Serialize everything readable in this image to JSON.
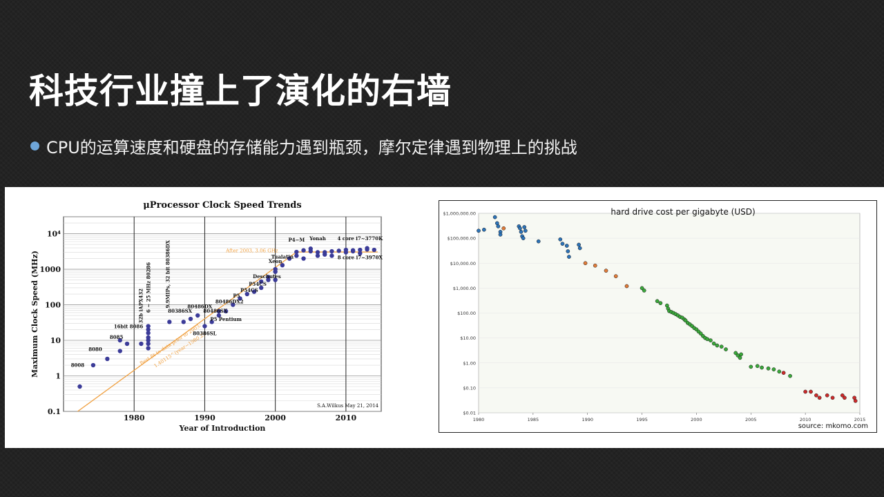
{
  "slide": {
    "title": "科技行业撞上了演化的右墙",
    "bullet": "CPU的运算速度和硬盘的存储能力遇到瓶颈，摩尔定律遇到物理上的挑战"
  },
  "colors": {
    "cpu_dot": "#3b3b98",
    "trend": "#f0a040",
    "hd_blue": "#2c73b8",
    "hd_orange": "#e07b39",
    "hd_green": "#3aa83a",
    "hd_red": "#cc2a2a"
  },
  "chart_data": [
    {
      "type": "scatter",
      "title": "μProcessor Clock Speed Trends",
      "xlabel": "Year of Introduction",
      "ylabel": "Maximum Clock Speed (MHz)",
      "xlim": [
        1970,
        2015
      ],
      "ylim": [
        0.1,
        30000
      ],
      "yscale": "log",
      "xticks": [
        "1980",
        "1990",
        "2000",
        "2010"
      ],
      "yticks": [
        "0.1",
        "1",
        "10",
        "100",
        "1000",
        "10⁴"
      ],
      "grid": true,
      "credit": "S.A.Wilkus May 21, 2014",
      "annotations": [
        {
          "text": "After 2003, 3.06 GHz",
          "x": 1993,
          "y": 3000
        },
        {
          "text": "Best fit to data prior to 2003:",
          "x": 1981,
          "y": 2
        },
        {
          "text": "1.40115^(year−1980.2)",
          "x": 1983,
          "y": 1.7
        }
      ],
      "trend": [
        {
          "x": 1972,
          "y": 0.1
        },
        {
          "x": 2003,
          "y": 3060
        },
        {
          "x": 2014.5,
          "y": 3060
        }
      ],
      "labels": [
        {
          "text": "8008",
          "x": 1972,
          "y": 1.8
        },
        {
          "text": "8080",
          "x": 1974.5,
          "y": 5
        },
        {
          "text": "8085",
          "x": 1977.5,
          "y": 11
        },
        {
          "text": "16bit 8086",
          "x": 1979.2,
          "y": 22
        },
        {
          "text": "32b iAPX432",
          "x": 1981.2,
          "y": 30
        },
        {
          "text": "6 ~ 25 MHz 80286",
          "x": 1982.3,
          "y": 60
        },
        {
          "text": "9.9MIPs, 32 bit 80386DX",
          "x": 1985,
          "y": 80
        },
        {
          "text": "80486DX",
          "x": 1989.3,
          "y": 80
        },
        {
          "text": "80386SX",
          "x": 1986.5,
          "y": 60
        },
        {
          "text": "80486SX",
          "x": 1991.5,
          "y": 60
        },
        {
          "text": "80486DX2",
          "x": 1993.5,
          "y": 110
        },
        {
          "text": "P5",
          "x": 1994.5,
          "y": 160
        },
        {
          "text": "P54CS",
          "x": 1996.3,
          "y": 230
        },
        {
          "text": "P54CS",
          "x": 1997.5,
          "y": 340
        },
        {
          "text": "P5 Pentium",
          "x": 1993,
          "y": 35
        },
        {
          "text": "80386SL",
          "x": 1990,
          "y": 14
        },
        {
          "text": "Deschutes",
          "x": 1998.8,
          "y": 560
        },
        {
          "text": "Xeon",
          "x": 2000,
          "y": 1500
        },
        {
          "text": "Tualatin",
          "x": 2001,
          "y": 2000
        },
        {
          "text": "P4−M",
          "x": 2003,
          "y": 6000
        },
        {
          "text": "Yonah",
          "x": 2006,
          "y": 6500
        },
        {
          "text": "4 core i7~3770K",
          "x": 2012,
          "y": 6500
        },
        {
          "text": "8 core i7~3970X",
          "x": 2012,
          "y": 1900
        }
      ],
      "points": [
        [
          1972.3,
          0.5
        ],
        [
          1974.2,
          2
        ],
        [
          1976.2,
          3
        ],
        [
          1978,
          5
        ],
        [
          1978,
          10
        ],
        [
          1979,
          8
        ],
        [
          1981,
          8
        ],
        [
          1982,
          6
        ],
        [
          1982,
          8
        ],
        [
          1982,
          10
        ],
        [
          1982,
          12
        ],
        [
          1982,
          16
        ],
        [
          1982,
          20
        ],
        [
          1982,
          25
        ],
        [
          1985,
          33
        ],
        [
          1987,
          33
        ],
        [
          1988,
          40
        ],
        [
          1989,
          50
        ],
        [
          1990,
          25
        ],
        [
          1991,
          33
        ],
        [
          1992,
          66
        ],
        [
          1992,
          50
        ],
        [
          1993,
          66
        ],
        [
          1994,
          100
        ],
        [
          1995,
          150
        ],
        [
          1996,
          200
        ],
        [
          1997,
          233
        ],
        [
          1998,
          300
        ],
        [
          1998,
          450
        ],
        [
          1999,
          500
        ],
        [
          1999,
          600
        ],
        [
          2000,
          1000
        ],
        [
          2000,
          850
        ],
        [
          2000,
          500
        ],
        [
          2001,
          1300
        ],
        [
          2002,
          2000
        ],
        [
          2003,
          2400
        ],
        [
          2003,
          3060
        ],
        [
          2004,
          3400
        ],
        [
          2004,
          2000
        ],
        [
          2005,
          3800
        ],
        [
          2005,
          3200
        ],
        [
          2006,
          2400
        ],
        [
          2006,
          3000
        ],
        [
          2007,
          3000
        ],
        [
          2007,
          2600
        ],
        [
          2008,
          3200
        ],
        [
          2008,
          2400
        ],
        [
          2009,
          3300
        ],
        [
          2010,
          3500
        ],
        [
          2010,
          3000
        ],
        [
          2011,
          3400
        ],
        [
          2011,
          3200
        ],
        [
          2012,
          3500
        ],
        [
          2012,
          2800
        ],
        [
          2013,
          3900
        ],
        [
          2013,
          3600
        ],
        [
          2014,
          3500
        ]
      ]
    },
    {
      "type": "scatter",
      "title": "hard drive cost per gigabyte (USD)",
      "yscale": "log",
      "xlim": [
        1980,
        2015
      ],
      "ylim": [
        0.01,
        1000000
      ],
      "xticks": [
        "1980",
        "1985",
        "1990",
        "1995",
        "2000",
        "2005",
        "2010",
        "2015"
      ],
      "yticks": [
        "$0.01",
        "$0.10",
        "$1.00",
        "$10.00",
        "$100.00",
        "$1,000.00",
        "$10,000.00",
        "$100,000.00",
        "$1,000,000.00"
      ],
      "source": "source: mkomo.com",
      "series": [
        {
          "color": "blue",
          "points": [
            [
              1980,
              200000
            ],
            [
              1980.5,
              220000
            ],
            [
              1981.5,
              700000
            ],
            [
              1981.7,
              400000
            ],
            [
              1981.8,
              300000
            ],
            [
              1982,
              180000
            ],
            [
              1982,
              140000
            ],
            [
              1983.7,
              300000
            ],
            [
              1983.8,
              250000
            ],
            [
              1983.9,
              180000
            ],
            [
              1984,
              120000
            ],
            [
              1984.1,
              100000
            ],
            [
              1984.2,
              280000
            ],
            [
              1984.3,
              200000
            ],
            [
              1985.5,
              75000
            ],
            [
              1987.5,
              90000
            ],
            [
              1987.7,
              60000
            ],
            [
              1988.1,
              50000
            ],
            [
              1988.2,
              30000
            ],
            [
              1988.3,
              18000
            ],
            [
              1989.2,
              55000
            ],
            [
              1989.3,
              40000
            ]
          ]
        },
        {
          "color": "orange",
          "points": [
            [
              1982.3,
              250000
            ],
            [
              1989.8,
              10000
            ],
            [
              1990.7,
              8000
            ],
            [
              1991.7,
              5000
            ],
            [
              1992.6,
              3000
            ],
            [
              1993.6,
              1200
            ]
          ]
        },
        {
          "color": "green",
          "points": [
            [
              1995,
              1000
            ],
            [
              1995.2,
              800
            ],
            [
              1996.4,
              300
            ],
            [
              1996.7,
              250
            ],
            [
              1997.3,
              200
            ],
            [
              1997.4,
              150
            ],
            [
              1997.5,
              120
            ],
            [
              1997.7,
              110
            ],
            [
              1997.9,
              100
            ],
            [
              1998.1,
              90
            ],
            [
              1998.3,
              80
            ],
            [
              1998.5,
              70
            ],
            [
              1998.7,
              65
            ],
            [
              1998.9,
              55
            ],
            [
              1999,
              50
            ],
            [
              1999.2,
              40
            ],
            [
              1999.4,
              35
            ],
            [
              1999.6,
              30
            ],
            [
              1999.8,
              25
            ],
            [
              2000,
              22
            ],
            [
              2000.2,
              18
            ],
            [
              2000.4,
              15
            ],
            [
              2000.6,
              12
            ],
            [
              2000.8,
              10
            ],
            [
              2001,
              9
            ],
            [
              2001.3,
              8
            ],
            [
              2001.6,
              6
            ],
            [
              2001.9,
              5
            ],
            [
              2002.3,
              4.5
            ],
            [
              2002.7,
              3.5
            ],
            [
              2003.6,
              2.5
            ],
            [
              2003.8,
              2
            ],
            [
              2004,
              1.6
            ],
            [
              2004.1,
              2.2
            ],
            [
              2005,
              0.7
            ],
            [
              2005.6,
              0.75
            ],
            [
              2006,
              0.65
            ],
            [
              2006.6,
              0.6
            ],
            [
              2007.1,
              0.55
            ],
            [
              2007.6,
              0.45
            ],
            [
              2008.6,
              0.3
            ]
          ]
        },
        {
          "color": "red",
          "points": [
            [
              2008,
              0.4
            ],
            [
              2010,
              0.07
            ],
            [
              2010.5,
              0.07
            ],
            [
              2011,
              0.05
            ],
            [
              2011.3,
              0.04
            ],
            [
              2012,
              0.05
            ],
            [
              2012.5,
              0.04
            ],
            [
              2013.4,
              0.05
            ],
            [
              2013.6,
              0.04
            ],
            [
              2014.5,
              0.04
            ],
            [
              2014.6,
              0.03
            ]
          ]
        }
      ]
    }
  ]
}
